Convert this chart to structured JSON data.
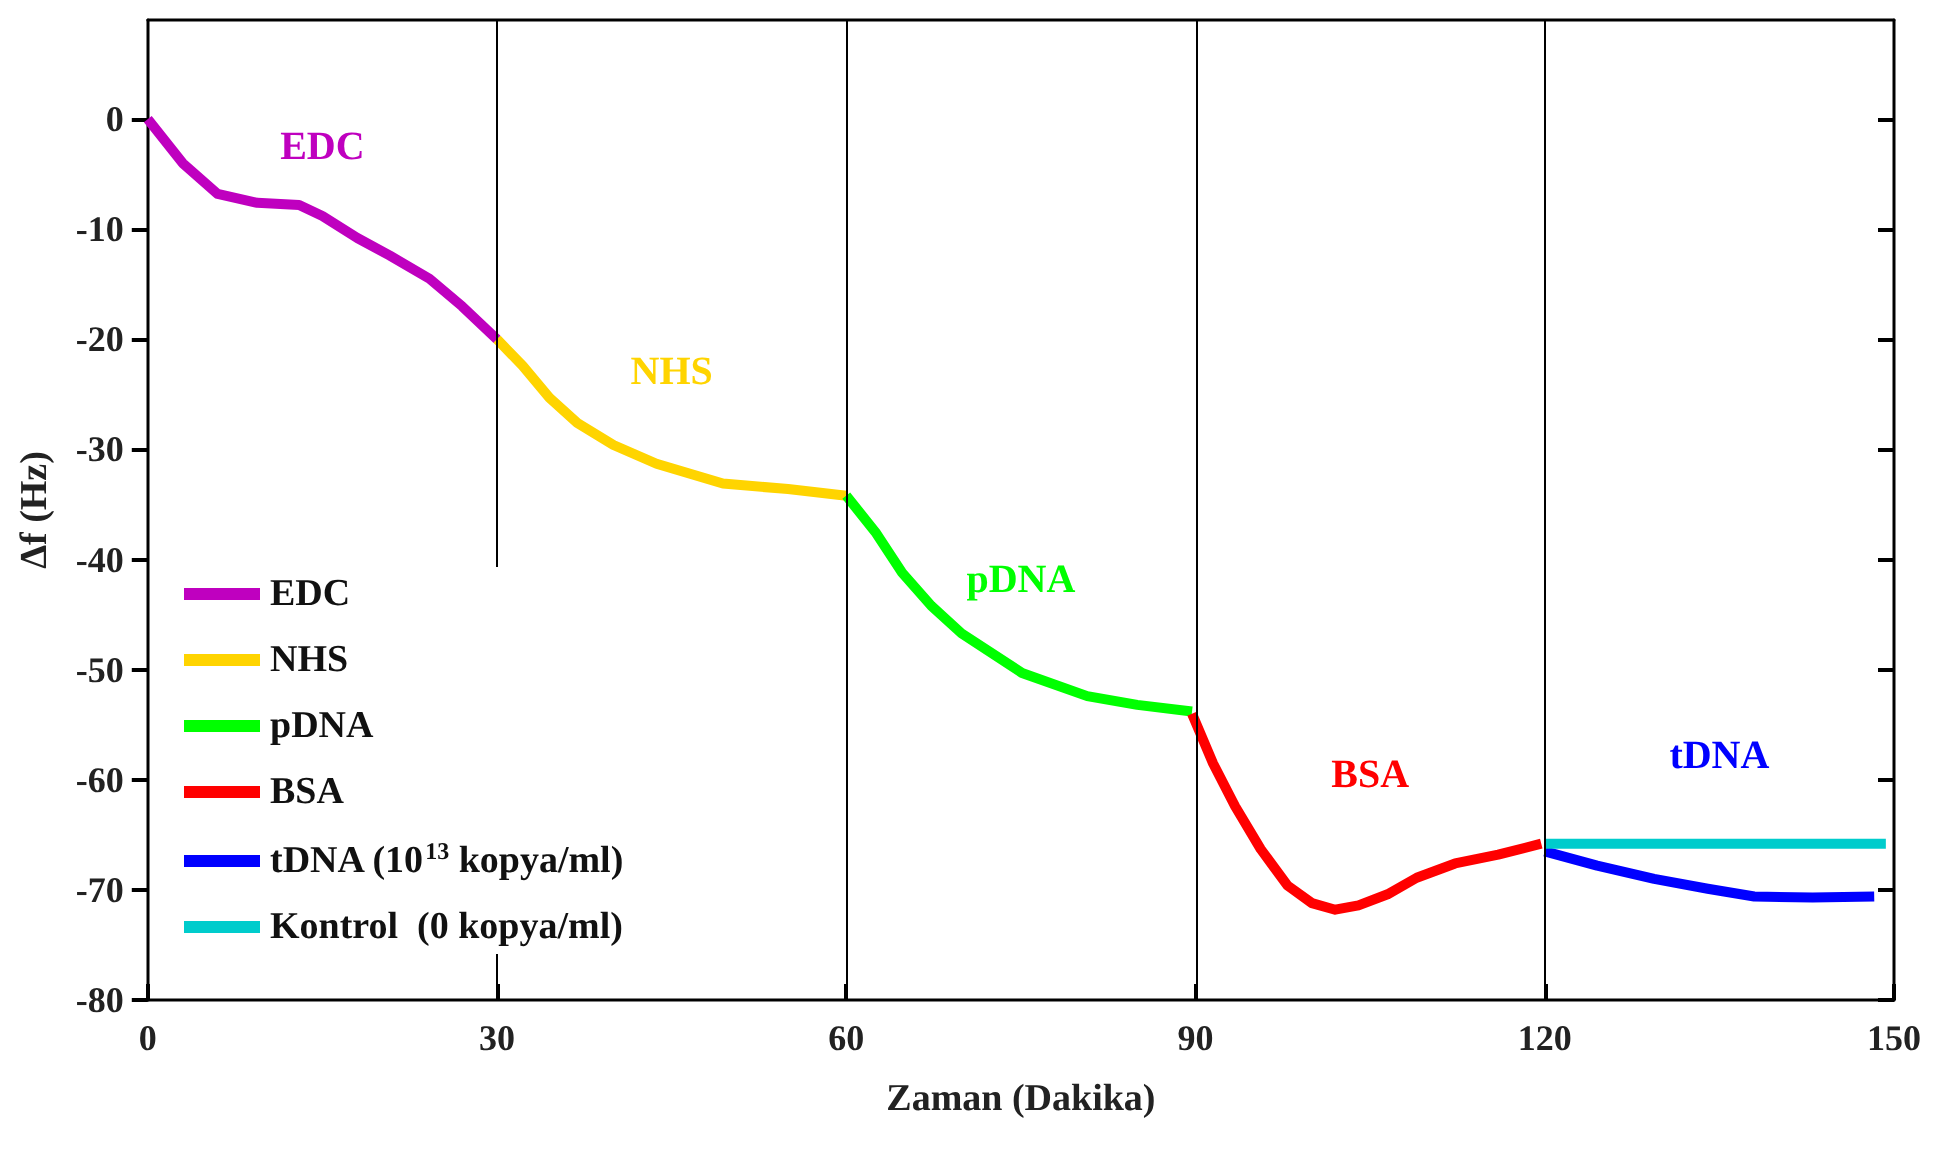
{
  "chart_data": {
    "type": "line",
    "xlabel": "Zaman (Dakika)",
    "ylabel": "Δf (Hz)",
    "xlim": [
      0,
      150
    ],
    "xticks": [
      0,
      30,
      60,
      90,
      120,
      150
    ],
    "ylim": [
      -80,
      9
    ],
    "yticks": [
      -80,
      -70,
      -60,
      -50,
      -40,
      -30,
      -20,
      -10,
      0
    ],
    "grid": false,
    "legend": "bottom left",
    "marker": "none",
    "line_style": "solid",
    "series": [
      {
        "name": "EDC",
        "color": "#bf00bf",
        "x": [
          0,
          3,
          6,
          9.4,
          13,
          15,
          18,
          20.8,
          24.2,
          27,
          30
        ],
        "values": [
          0,
          -4,
          -6.8,
          -7.6,
          -7.8,
          -8.8,
          -10.8,
          -12.4,
          -14.5,
          -17,
          -20
        ]
      },
      {
        "name": "NHS",
        "color": "#ffd400",
        "x": [
          30,
          32.2,
          34.5,
          36.9,
          40,
          43.7,
          49.4,
          55,
          60
        ],
        "values": [
          -20,
          -22.4,
          -25.3,
          -27.6,
          -29.6,
          -31.3,
          -33.1,
          -33.6,
          -34.2
        ]
      },
      {
        "name": "pDNA",
        "color": "#00ff00",
        "x": [
          60,
          62.5,
          64.8,
          67.3,
          69.9,
          75.1,
          80.7,
          85,
          89.7
        ],
        "values": [
          -34.2,
          -37.5,
          -41.2,
          -44.2,
          -46.7,
          -50.3,
          -52.4,
          -53.2,
          -53.8
        ]
      },
      {
        "name": "BSA",
        "color": "#ff0000",
        "x": [
          89.7,
          91.5,
          93.4,
          95.6,
          97.9,
          100,
          102,
          104,
          106.5,
          109,
          112.3,
          116,
          119.7
        ],
        "values": [
          -54,
          -58.5,
          -62.4,
          -66.3,
          -69.6,
          -71.2,
          -71.8,
          -71.4,
          -70.4,
          -68.9,
          -67.6,
          -66.8,
          -65.8
        ]
      },
      {
        "name": "tDNA (10$^{13}$ kopya/ml)",
        "color": "#0000ff",
        "x": [
          120,
          124.5,
          129.4,
          134,
          138,
          143,
          148.3
        ],
        "values": [
          -66.5,
          -67.8,
          -69,
          -69.9,
          -70.6,
          -70.7,
          -70.6
        ]
      },
      {
        "name": "Kontrol  (0 kopya/ml)",
        "color": "#00cccc",
        "x": [
          120,
          149.3
        ],
        "values": [
          -65.8,
          -65.8
        ]
      }
    ],
    "ref_lines": [
      {
        "axis": "x",
        "value": 30,
        "color": "#000000"
      },
      {
        "axis": "x",
        "value": 60,
        "color": "#000000"
      },
      {
        "axis": "x",
        "value": 90,
        "color": "#000000"
      },
      {
        "axis": "x",
        "value": 120,
        "color": "#000000"
      }
    ],
    "annotations": [
      "EDC",
      "NHS",
      "pDNA",
      "BSA",
      "tDNA"
    ]
  }
}
